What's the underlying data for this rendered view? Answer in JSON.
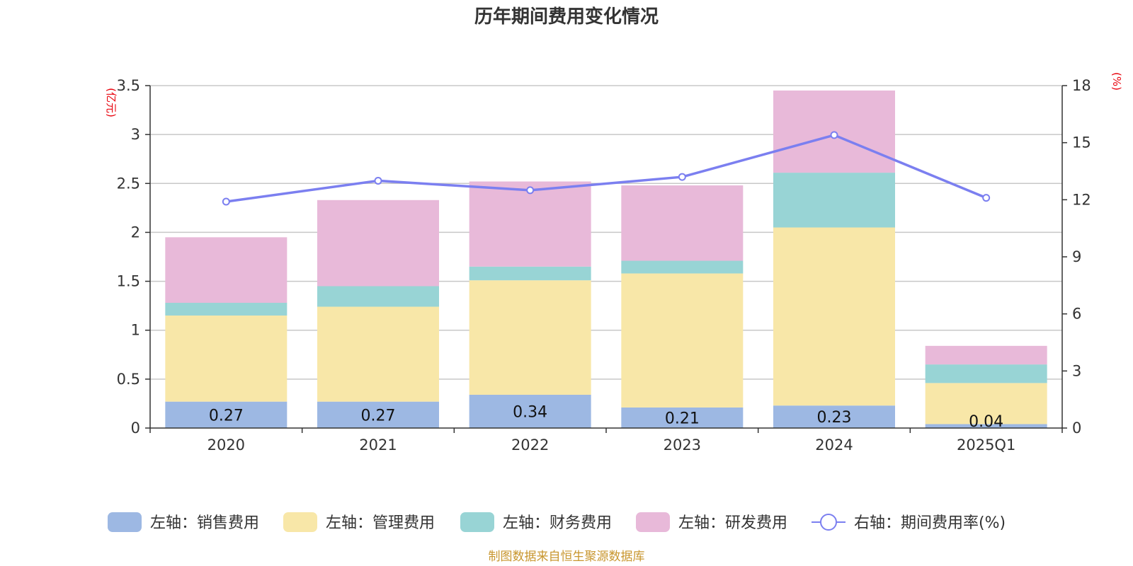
{
  "chart_data": {
    "type": "bar",
    "stacked": true,
    "title": "历年期间费用变化情况",
    "categories": [
      "2020",
      "2021",
      "2022",
      "2023",
      "2024",
      "2025Q1"
    ],
    "series": [
      {
        "name": "左轴：销售费用",
        "axis": "left",
        "color": "#9db8e3",
        "values": [
          0.27,
          0.27,
          0.34,
          0.21,
          0.23,
          0.04
        ],
        "labels": [
          "0.27",
          "0.27",
          "0.34",
          "0.21",
          "0.23",
          "0.04"
        ]
      },
      {
        "name": "左轴：管理费用",
        "axis": "left",
        "color": "#f8e7a8",
        "values": [
          0.88,
          0.97,
          1.17,
          1.37,
          1.82,
          0.42
        ]
      },
      {
        "name": "左轴：财务费用",
        "axis": "left",
        "color": "#98d4d5",
        "values": [
          0.13,
          0.21,
          0.14,
          0.13,
          0.56,
          0.19
        ]
      },
      {
        "name": "左轴：研发费用",
        "axis": "left",
        "color": "#e8b9d9",
        "values": [
          0.67,
          0.88,
          0.87,
          0.77,
          0.84,
          0.19
        ]
      }
    ],
    "line": {
      "name": "右轴：期间费用率(%)",
      "axis": "right",
      "color": "#7b7ff0",
      "values": [
        11.9,
        13.0,
        12.5,
        13.2,
        15.4,
        12.1
      ]
    },
    "left_axis": {
      "unit": "(亿元)",
      "ylim": [
        0,
        3.5
      ],
      "ticks": [
        "0",
        "0.5",
        "1",
        "1.5",
        "2",
        "2.5",
        "3",
        "3.5"
      ]
    },
    "right_axis": {
      "unit": "(%)",
      "ylim": [
        0,
        18
      ],
      "ticks": [
        "0",
        "3",
        "6",
        "9",
        "12",
        "15",
        "18"
      ]
    },
    "grid": true,
    "legend_position": "bottom",
    "source": "制图数据来自恒生聚源数据库"
  }
}
